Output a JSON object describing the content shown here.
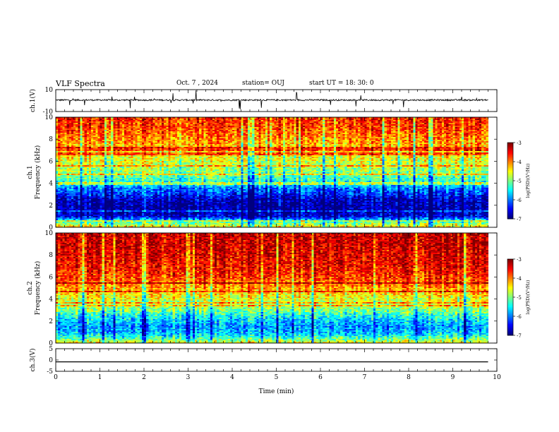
{
  "header": {
    "title": "VLF Spectra",
    "date": "Oct. 7 , 2024",
    "station": "station= OUJ",
    "start": "start UT = 18: 30: 0"
  },
  "colors": {
    "jet": [
      "#00007f",
      "#0000ff",
      "#007fff",
      "#00ffff",
      "#7fff7f",
      "#ffff00",
      "#ff7f00",
      "#ff0000",
      "#7f0000"
    ]
  },
  "chart_data": [
    {
      "id": "ch1-waveform",
      "type": "line",
      "ylabel": "ch.1(V)",
      "ylim": [
        -10,
        10
      ],
      "yticks": [
        "10",
        "-10"
      ],
      "xlim": [
        0,
        10
      ],
      "trace": {
        "baseline_v": 0.5,
        "noise_amp_v": 1.4,
        "end_min": 9.8
      }
    },
    {
      "id": "ch1-spectrogram",
      "type": "heatmap",
      "ylabel": "ch.1",
      "ylabel2": "Frequency (kHz)",
      "ylim": [
        0,
        10
      ],
      "yticks": [
        "0",
        "2",
        "4",
        "6",
        "8",
        "10"
      ],
      "xlim": [
        0,
        10
      ],
      "end_min": 9.8,
      "colorbar": {
        "label": "log(PSD)(V²/Hz)",
        "ticks": [
          "-3",
          "-4",
          "-5",
          "-6",
          "-7"
        ],
        "range": [
          -7,
          -3
        ]
      },
      "profile_khz": [
        0,
        0.5,
        1,
        1.5,
        2,
        2.5,
        3,
        3.5,
        4,
        5,
        6,
        7,
        8,
        9,
        10
      ],
      "profile_log_psd": [
        -4.3,
        -5.2,
        -6.6,
        -6.8,
        -6.8,
        -6.7,
        -6.3,
        -6.0,
        -5.4,
        -4.9,
        -4.6,
        -4.3,
        -4.0,
        -3.7,
        -3.6
      ]
    },
    {
      "id": "ch2-spectrogram",
      "type": "heatmap",
      "ylabel": "ch.2",
      "ylabel2": "Frequency (kHz)",
      "ylim": [
        0,
        10
      ],
      "yticks": [
        "0",
        "2",
        "4",
        "6",
        "8",
        "10"
      ],
      "xlim": [
        0,
        10
      ],
      "end_min": 9.8,
      "colorbar": {
        "label": "log(PSD)(V²/Hz)",
        "ticks": [
          "-3",
          "-4",
          "-5",
          "-6",
          "-7"
        ],
        "range": [
          -7,
          -3
        ]
      },
      "profile_khz": [
        0,
        0.5,
        1,
        1.5,
        2,
        2.5,
        3,
        3.5,
        4,
        5,
        6,
        7,
        8,
        9,
        10
      ],
      "profile_log_psd": [
        -4.5,
        -5.3,
        -5.8,
        -5.9,
        -5.7,
        -5.4,
        -5.0,
        -4.8,
        -4.6,
        -4.1,
        -3.7,
        -3.5,
        -3.4,
        -3.3,
        -3.3
      ]
    },
    {
      "id": "ch3-waveform",
      "type": "line",
      "ylabel": "ch.3(V)",
      "ylim": [
        -5,
        5
      ],
      "yticks": [
        "5",
        "0",
        "-5"
      ],
      "xlim": [
        0,
        10
      ],
      "trace": {
        "baseline_v": -0.8,
        "noise_amp_v": 0,
        "end_min": 9.8
      }
    }
  ],
  "xaxis": {
    "label": "Time (min)",
    "ticks": [
      "0",
      "1",
      "2",
      "3",
      "4",
      "5",
      "6",
      "7",
      "8",
      "9",
      "10"
    ]
  }
}
